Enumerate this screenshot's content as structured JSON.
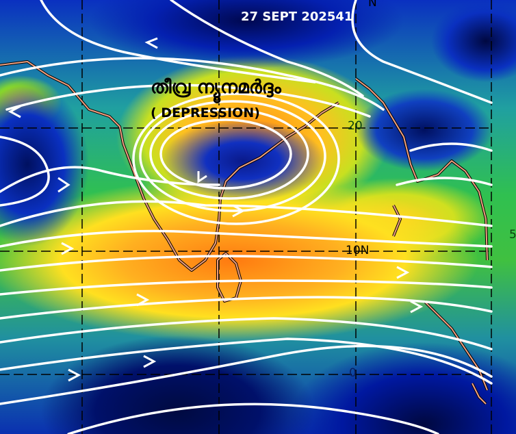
{
  "map": {
    "date_label": "27 SEPT 202541",
    "title_malayalam": "തീവ്ര ന്യൂനമർദ്ദം",
    "title_english": "( DEPRESSION)",
    "grid_labels": {
      "top": "N",
      "lat20": "20",
      "lat10": "10N",
      "lat0": "0",
      "right_edge": "5"
    },
    "colors": {
      "streamline": "#ffffff",
      "coastline": "#f0a080",
      "grid": "#000000",
      "high_value": "#ff7a10",
      "low_value": "#0a1a8a"
    }
  }
}
